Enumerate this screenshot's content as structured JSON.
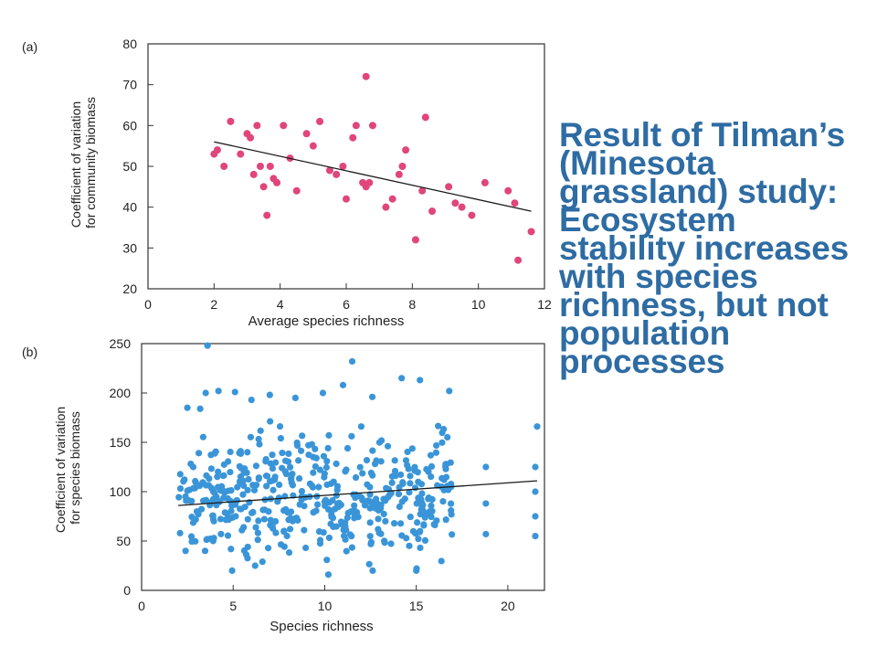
{
  "caption": "Result of Tilman’s (Minesota grassland) study: Ecosystem stability increases with species richness, but not population processes",
  "colors": {
    "caption": "#2e6ca3",
    "panel_a_points": "#e0457b",
    "panel_b_points": "#3a95d8",
    "fit_line": "#1a1a1a"
  },
  "chart_data": [
    {
      "panel": "(a)",
      "type": "scatter",
      "xlabel": "Average species richness",
      "ylabel": "Coefficient of variation\nfor community biomass",
      "xlim": [
        0,
        12
      ],
      "ylim": [
        20,
        80
      ],
      "xticks": [
        0,
        2,
        4,
        6,
        8,
        10,
        12
      ],
      "yticks": [
        20,
        30,
        40,
        50,
        60,
        70,
        80
      ],
      "points": [
        [
          2.0,
          53
        ],
        [
          2.1,
          54
        ],
        [
          2.3,
          50
        ],
        [
          2.5,
          61
        ],
        [
          2.8,
          53
        ],
        [
          3.0,
          58
        ],
        [
          3.1,
          57
        ],
        [
          3.2,
          48
        ],
        [
          3.3,
          60
        ],
        [
          3.4,
          50
        ],
        [
          3.5,
          45
        ],
        [
          3.6,
          38
        ],
        [
          3.7,
          50
        ],
        [
          3.8,
          47
        ],
        [
          3.9,
          46
        ],
        [
          4.1,
          60
        ],
        [
          4.3,
          52
        ],
        [
          4.5,
          44
        ],
        [
          4.8,
          58
        ],
        [
          5.0,
          55
        ],
        [
          5.2,
          61
        ],
        [
          5.5,
          49
        ],
        [
          5.7,
          48
        ],
        [
          5.9,
          50
        ],
        [
          6.0,
          42
        ],
        [
          6.2,
          57
        ],
        [
          6.3,
          60
        ],
        [
          6.5,
          46
        ],
        [
          6.6,
          45
        ],
        [
          6.6,
          72
        ],
        [
          6.7,
          46
        ],
        [
          6.8,
          60
        ],
        [
          7.2,
          40
        ],
        [
          7.4,
          42
        ],
        [
          7.6,
          48
        ],
        [
          7.7,
          50
        ],
        [
          7.8,
          54
        ],
        [
          8.1,
          32
        ],
        [
          8.3,
          44
        ],
        [
          8.4,
          62
        ],
        [
          8.6,
          39
        ],
        [
          9.1,
          45
        ],
        [
          9.3,
          41
        ],
        [
          9.5,
          40
        ],
        [
          9.8,
          38
        ],
        [
          10.2,
          46
        ],
        [
          10.9,
          44
        ],
        [
          11.1,
          41
        ],
        [
          11.2,
          27
        ],
        [
          11.6,
          34
        ]
      ],
      "fit": {
        "x": [
          2.0,
          11.6
        ],
        "y": [
          56,
          39
        ]
      }
    },
    {
      "panel": "(b)",
      "type": "scatter",
      "xlabel": "Species richness",
      "ylabel": "Coefficient of variation\nfor species biomass",
      "xlim": [
        0,
        22
      ],
      "ylim": [
        0,
        250
      ],
      "xticks": [
        0,
        5,
        10,
        15,
        20
      ],
      "yticks": [
        0,
        50,
        100,
        150,
        200,
        250
      ],
      "points": [
        [
          3.6,
          248
        ],
        [
          11.5,
          232
        ],
        [
          14.2,
          215
        ],
        [
          15.2,
          213
        ],
        [
          11.0,
          208
        ],
        [
          16.8,
          202
        ],
        [
          4.2,
          202
        ],
        [
          5.1,
          201
        ],
        [
          3.5,
          200
        ],
        [
          9.9,
          200
        ],
        [
          7.0,
          198
        ],
        [
          12.6,
          196
        ],
        [
          8.4,
          195
        ],
        [
          6.0,
          193
        ],
        [
          2.5,
          185
        ],
        [
          3.2,
          184
        ],
        [
          21.6,
          166
        ],
        [
          2.1,
          58
        ],
        [
          2.4,
          95
        ],
        [
          2.4,
          40
        ],
        [
          18.8,
          125
        ],
        [
          18.8,
          88
        ],
        [
          18.8,
          57
        ],
        [
          21.5,
          125
        ],
        [
          21.5,
          100
        ],
        [
          21.5,
          75
        ],
        [
          21.5,
          55
        ],
        [
          10.2,
          16
        ],
        [
          6.2,
          25
        ],
        [
          15.0,
          20
        ]
      ],
      "cloud": {
        "count": 470,
        "x_range": [
          2.0,
          17.0
        ],
        "y_range": [
          20,
          185
        ],
        "center_y": 95,
        "spread_y": 32
      },
      "fit": {
        "x": [
          2.0,
          21.6
        ],
        "y": [
          86,
          111
        ]
      }
    }
  ]
}
